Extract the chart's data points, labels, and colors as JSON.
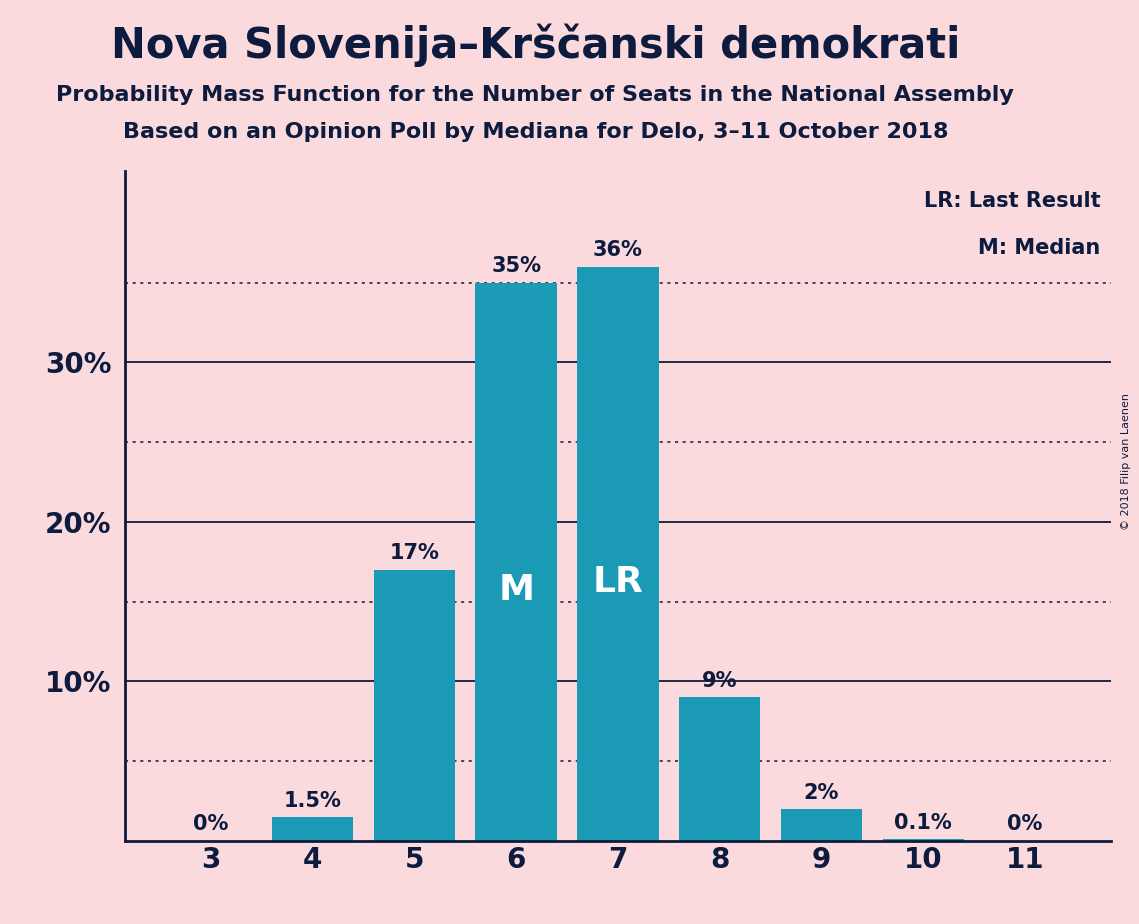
{
  "title": "Nova Slovenija–Krščanski demokrati",
  "subtitle1": "Probability Mass Function for the Number of Seats in the National Assembly",
  "subtitle2": "Based on an Opinion Poll by Mediana for Delo, 3–11 October 2018",
  "copyright": "© 2018 Filip van Laenen",
  "categories": [
    3,
    4,
    5,
    6,
    7,
    8,
    9,
    10,
    11
  ],
  "values": [
    0.0,
    1.5,
    17.0,
    35.0,
    36.0,
    9.0,
    2.0,
    0.1,
    0.0
  ],
  "bar_color": "#1a9ab5",
  "background_color": "#fadadd",
  "label_color": "#0d1b3e",
  "bar_labels": [
    "0%",
    "1.5%",
    "17%",
    "35%",
    "36%",
    "9%",
    "2%",
    "0.1%",
    "0%"
  ],
  "median_bar_idx": 3,
  "lr_bar_idx": 4,
  "legend_lr": "LR: Last Result",
  "legend_m": "M: Median",
  "solid_gridlines": [
    10,
    20,
    30
  ],
  "dotted_gridlines": [
    5,
    15,
    25,
    35
  ],
  "ylim": [
    0,
    42
  ]
}
